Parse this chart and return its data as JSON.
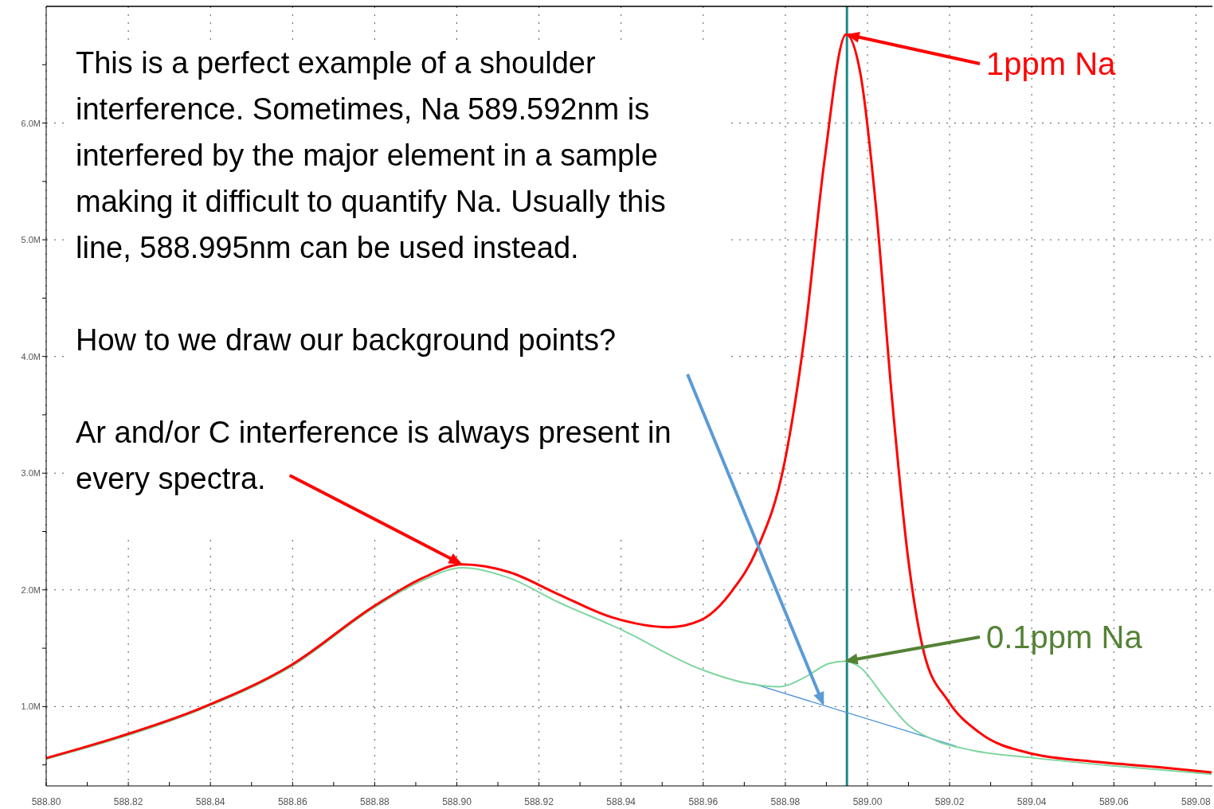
{
  "chart_data": {
    "type": "line",
    "xlim": [
      588.8,
      589.084
    ],
    "xticks": [
      {
        "value": 588.8,
        "label": "588.80"
      },
      {
        "value": 588.81,
        "label": null
      },
      {
        "value": 588.82,
        "label": "588.82"
      },
      {
        "value": 588.83,
        "label": null
      },
      {
        "value": 588.84,
        "label": "588.84"
      },
      {
        "value": 588.85,
        "label": null
      },
      {
        "value": 588.86,
        "label": "588.86"
      },
      {
        "value": 588.87,
        "label": null
      },
      {
        "value": 588.88,
        "label": "588.88"
      },
      {
        "value": 588.89,
        "label": null
      },
      {
        "value": 588.9,
        "label": "588.90"
      },
      {
        "value": 588.91,
        "label": null
      },
      {
        "value": 588.92,
        "label": "588.92"
      },
      {
        "value": 588.93,
        "label": null
      },
      {
        "value": 588.94,
        "label": "588.94"
      },
      {
        "value": 588.95,
        "label": null
      },
      {
        "value": 588.96,
        "label": "588.96"
      },
      {
        "value": 588.97,
        "label": null
      },
      {
        "value": 588.98,
        "label": "588.98"
      },
      {
        "value": 588.99,
        "label": null
      },
      {
        "value": 589.0,
        "label": "589.00"
      },
      {
        "value": 589.01,
        "label": null
      },
      {
        "value": 589.02,
        "label": "589.02"
      },
      {
        "value": 589.03,
        "label": null
      },
      {
        "value": 589.04,
        "label": "589.04"
      },
      {
        "value": 589.05,
        "label": null
      },
      {
        "value": 589.06,
        "label": "589.06"
      },
      {
        "value": 589.07,
        "label": null
      },
      {
        "value": 589.08,
        "label": "589.08"
      }
    ],
    "ylim": [
      0.32,
      7.0
    ],
    "yticks": [
      {
        "value": 0.5,
        "label": null
      },
      {
        "value": 1,
        "label": "1.0M"
      },
      {
        "value": 1.5,
        "label": null
      },
      {
        "value": 2,
        "label": "2.0M"
      },
      {
        "value": 2.5,
        "label": null
      },
      {
        "value": 3,
        "label": "3.0M"
      },
      {
        "value": 3.5,
        "label": null
      },
      {
        "value": 4,
        "label": "4.0M"
      },
      {
        "value": 4.5,
        "label": null
      },
      {
        "value": 5,
        "label": "5.0M"
      },
      {
        "value": 5.5,
        "label": null
      },
      {
        "value": 6,
        "label": "6.0M"
      },
      {
        "value": 6.5,
        "label": null
      }
    ],
    "grid": true,
    "series": [
      {
        "color": "#ff0000",
        "x": [
          588.8,
          588.8178,
          588.8372,
          588.8596,
          588.88,
          588.8916,
          588.9013,
          588.9129,
          588.9245,
          588.938,
          588.9517,
          588.9594,
          588.9672,
          588.973,
          588.9798,
          588.9847,
          588.9895,
          588.9948,
          588.9983,
          589.0021,
          589.006,
          589.0099,
          589.0138,
          589.0196,
          589.0273,
          589.039,
          589.0564,
          589.07,
          589.0838
        ],
        "values": [
          0.558,
          0.742,
          0.98,
          1.354,
          1.864,
          2.1,
          2.218,
          2.15,
          1.966,
          1.762,
          1.68,
          1.74,
          2.0,
          2.34,
          3.09,
          4.18,
          5.67,
          6.76,
          6.42,
          5.27,
          3.63,
          2.27,
          1.456,
          1.05,
          0.776,
          0.605,
          0.524,
          0.483,
          0.436
        ]
      },
      {
        "color": "#7fd6a0",
        "x": [
          588.8,
          588.8178,
          588.8372,
          588.8596,
          588.88,
          588.8916,
          588.9013,
          588.9129,
          588.9245,
          588.94,
          588.9594,
          588.9711,
          588.9788,
          588.9847,
          588.9905,
          588.9944,
          588.9983,
          589.0041,
          589.0099,
          589.0167,
          589.0254,
          589.0409,
          589.0603,
          589.0838
        ],
        "values": [
          0.55,
          0.73,
          0.97,
          1.34,
          1.85,
          2.08,
          2.19,
          2.1,
          1.898,
          1.66,
          1.32,
          1.197,
          1.17,
          1.25,
          1.367,
          1.388,
          1.333,
          1.08,
          0.843,
          0.707,
          0.626,
          0.558,
          0.49,
          0.42
        ]
      },
      {
        "color": "#4a90d9",
        "x": [
          588.972,
          589.0216
        ],
        "values": [
          1.197,
          0.66
        ]
      }
    ],
    "ref_lines": [
      {
        "axis": "x",
        "value": 588.995,
        "label": null,
        "color": "#1a8a8a"
      }
    ],
    "annotations": [
      "This is a perfect example of a shoulder interference.  Sometimes, Na 589.592nm is interfered by the major element in a sample making it difficult to quantify Na. Usually this line, 588.995nm can be used instead.",
      "How to we draw our background points?",
      {
        "text": "Ar and/or C interference is always present in every spectra.",
        "x": 588.9013,
        "y": 2.218
      },
      {
        "text": "1ppm Na",
        "x": 588.9948,
        "y": 6.76
      },
      {
        "text": "0.1ppm Na",
        "x": 588.9944,
        "y": 1.388
      }
    ]
  }
}
